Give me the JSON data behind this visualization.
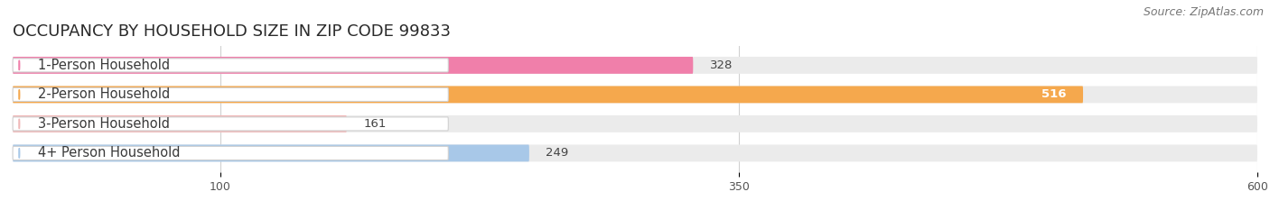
{
  "title": "OCCUPANCY BY HOUSEHOLD SIZE IN ZIP CODE 99833",
  "source": "Source: ZipAtlas.com",
  "categories": [
    "1-Person Household",
    "2-Person Household",
    "3-Person Household",
    "4+ Person Household"
  ],
  "values": [
    328,
    516,
    161,
    249
  ],
  "bar_colors": [
    "#f07faa",
    "#f5a84d",
    "#f0b8b8",
    "#a8c8e8"
  ],
  "value_colors": [
    "#555555",
    "#ffffff",
    "#555555",
    "#555555"
  ],
  "xlim": [
    0,
    600
  ],
  "xticks": [
    100,
    350,
    600
  ],
  "background_color": "#ffffff",
  "bar_bg_color": "#ebebeb",
  "grid_color": "#d0d0d0",
  "title_fontsize": 13,
  "source_fontsize": 9,
  "label_fontsize": 10.5,
  "value_fontsize": 9.5,
  "bar_height": 0.58
}
